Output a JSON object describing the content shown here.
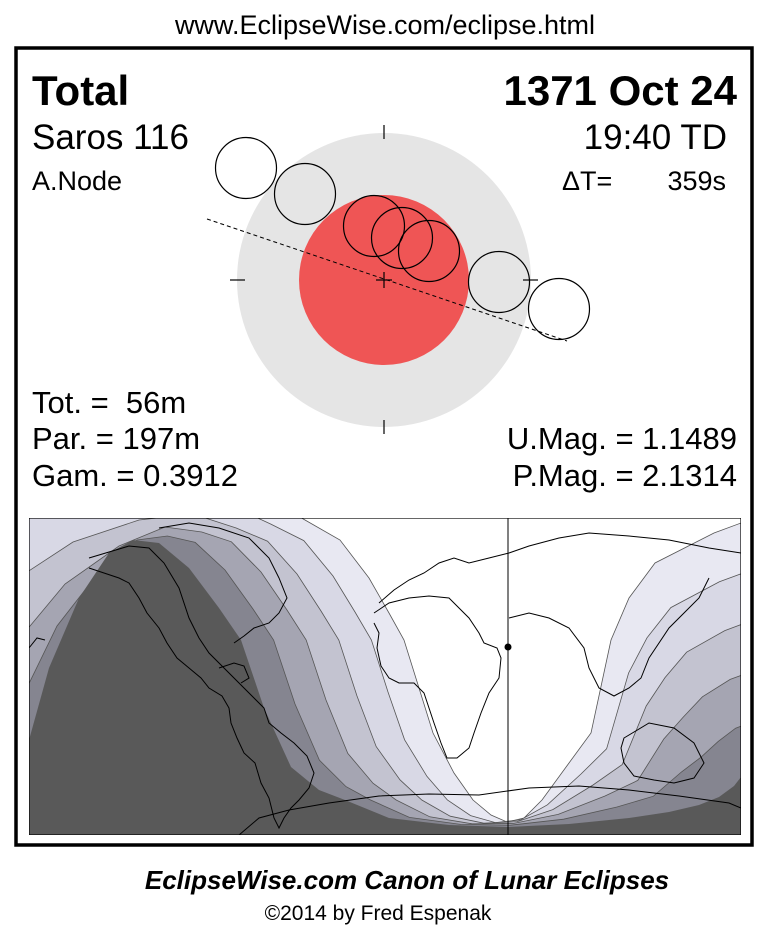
{
  "header": {
    "url": "www.EclipseWise.com/eclipse.html"
  },
  "eclipse": {
    "type": "Total",
    "date": "1371 Oct 24",
    "saros": "Saros 116",
    "time": "19:40 TD",
    "node": "A.Node",
    "delta_t_label": "ΔT=",
    "delta_t_value": "359s"
  },
  "stats": {
    "tot": "Tot. =  56m",
    "par": "Par. = 197m",
    "gam": "Gam. = 0.3912",
    "umag": "U.Mag. = 1.1489",
    "pmag": "P.Mag. = 2.1314"
  },
  "colors": {
    "umbra": "#ef5555",
    "penumbra": "#e5e5e5",
    "night": "#595959",
    "bands": [
      "#858590",
      "#a5a5b2",
      "#c3c3d0",
      "#d8d8e5",
      "#e8e8f2"
    ]
  },
  "footer": {
    "title": "EclipseWise.com Canon of Lunar Eclipses",
    "copyright": "©2014 by Fred Espenak"
  }
}
